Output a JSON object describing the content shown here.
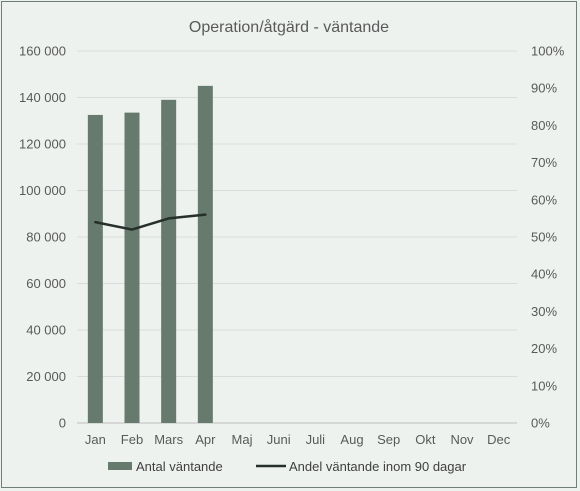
{
  "chart_data": {
    "type": "bar",
    "title": "Operation/åtgärd - väntande",
    "categories": [
      "Jan",
      "Feb",
      "Mars",
      "Apr",
      "Maj",
      "Juni",
      "Juli",
      "Aug",
      "Sep",
      "Okt",
      "Nov",
      "Dec"
    ],
    "y_left": {
      "range": [
        0,
        160000
      ],
      "ticks": [
        0,
        20000,
        40000,
        60000,
        80000,
        100000,
        120000,
        140000,
        160000
      ],
      "tick_labels": [
        "0",
        "20 000",
        "40 000",
        "60 000",
        "80 000",
        "100 000",
        "120 000",
        "140 000",
        "160 000"
      ]
    },
    "y_right": {
      "range": [
        0,
        1
      ],
      "ticks": [
        0,
        0.1,
        0.2,
        0.3,
        0.4,
        0.5,
        0.6,
        0.7,
        0.8,
        0.9,
        1
      ],
      "tick_labels": [
        "0%",
        "10%",
        "20%",
        "30%",
        "40%",
        "50%",
        "60%",
        "70%",
        "80%",
        "90%",
        "100%"
      ]
    },
    "series": [
      {
        "name": "Antal väntande",
        "type": "bar",
        "axis": "left",
        "color": "#667a6e",
        "values": [
          132500,
          133500,
          139000,
          145000,
          null,
          null,
          null,
          null,
          null,
          null,
          null,
          null
        ]
      },
      {
        "name": "Andel väntande inom 90 dagar",
        "type": "line",
        "axis": "right",
        "color": "#26302a",
        "values": [
          0.54,
          0.52,
          0.55,
          0.56,
          null,
          null,
          null,
          null,
          null,
          null,
          null,
          null
        ]
      }
    ],
    "grid": true,
    "legend_position": "bottom"
  }
}
